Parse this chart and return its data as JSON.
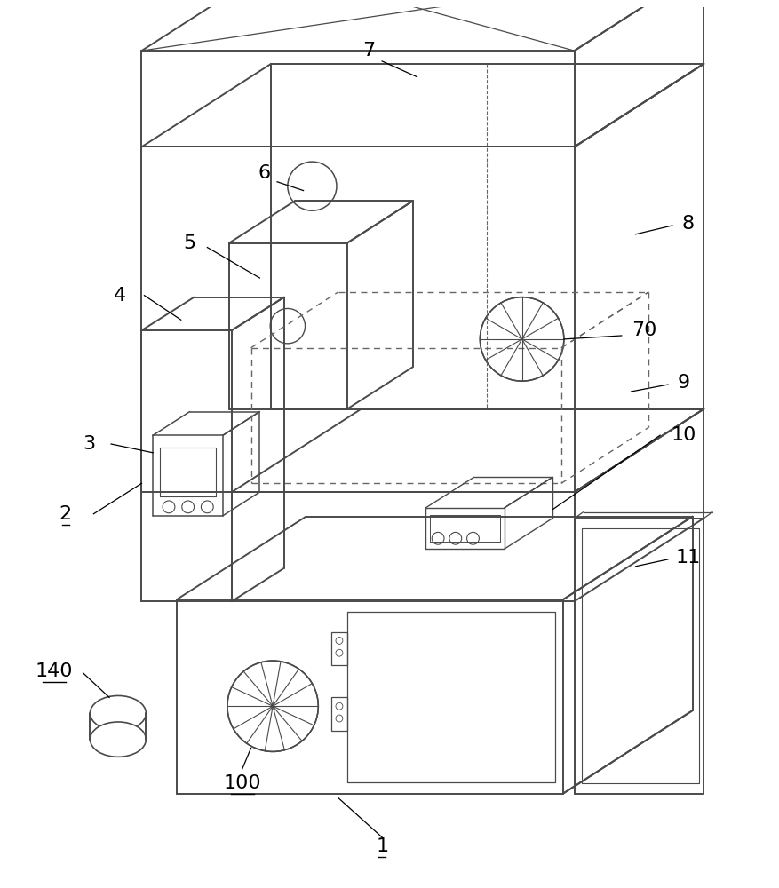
{
  "bg": "#ffffff",
  "lc": "#4a4a4a",
  "lw": 1.4,
  "dlw": 1.0,
  "dc": "#666666"
}
